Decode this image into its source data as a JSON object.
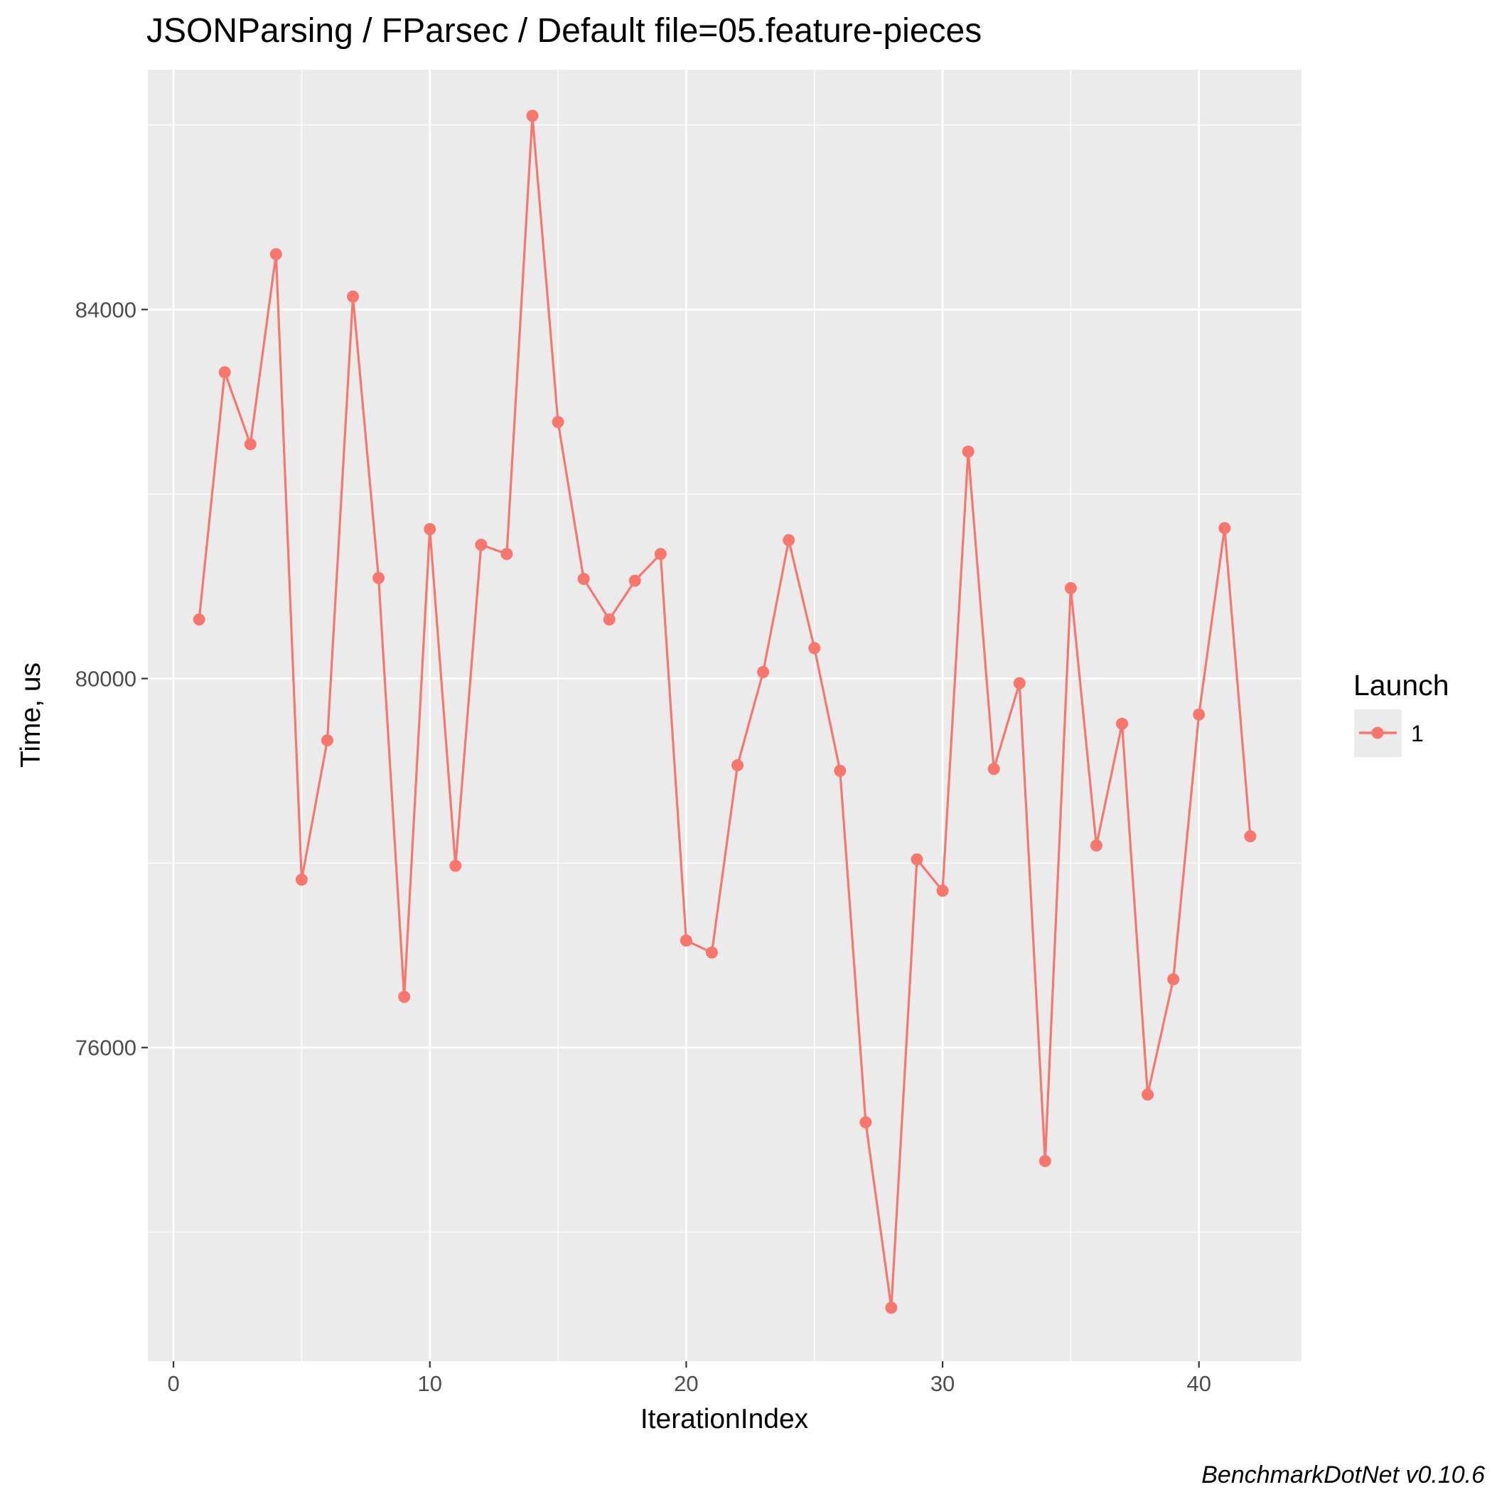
{
  "chart_data": {
    "type": "line",
    "title": "JSONParsing / FParsec / Default file=05.feature-pieces",
    "xlabel": "IterationIndex",
    "ylabel": "Time, us",
    "xlim": [
      -1,
      44
    ],
    "ylim": [
      72600,
      86600
    ],
    "x_ticks": [
      0,
      10,
      20,
      30,
      40
    ],
    "y_ticks": [
      76000,
      80000,
      84000
    ],
    "y_minor_ticks": [
      74000,
      78000,
      82000,
      86000
    ],
    "x_minor_ticks": [
      5,
      15,
      25,
      35
    ],
    "grid": true,
    "legend": {
      "title": "Launch",
      "position": "right"
    },
    "caption": "BenchmarkDotNet v0.10.6",
    "series": [
      {
        "name": "1",
        "color": "#F8766D",
        "x": [
          1,
          2,
          3,
          4,
          5,
          6,
          7,
          8,
          9,
          10,
          11,
          12,
          13,
          14,
          15,
          16,
          17,
          18,
          19,
          20,
          21,
          22,
          23,
          24,
          25,
          26,
          27,
          28,
          29,
          30,
          31,
          32,
          33,
          34,
          35,
          36,
          37,
          38,
          39,
          40,
          41,
          42
        ],
        "values": [
          80640,
          83320,
          82540,
          84600,
          77820,
          79330,
          84140,
          81090,
          76550,
          81620,
          77970,
          81450,
          81350,
          86100,
          82780,
          81080,
          80640,
          81060,
          81350,
          77160,
          77030,
          79060,
          80070,
          81500,
          80330,
          79000,
          75190,
          73180,
          78040,
          77700,
          82460,
          79020,
          79950,
          74770,
          80980,
          78190,
          79510,
          75490,
          76740,
          79610,
          81630,
          78290
        ]
      }
    ]
  }
}
